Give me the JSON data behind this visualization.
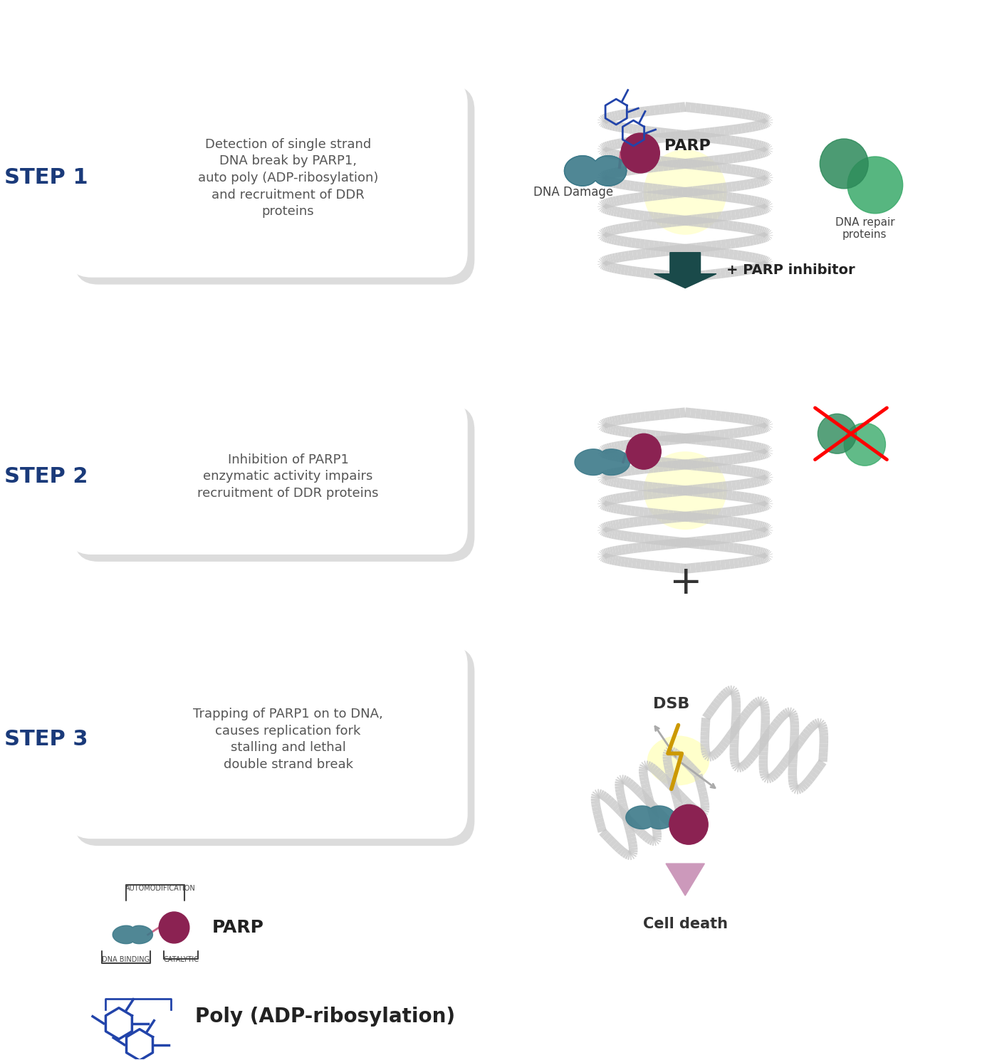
{
  "bg_color": "#ffffff",
  "step_color": "#1a3a7a",
  "bubble_bg": "#f5f5f5",
  "bubble_shadow": "#cccccc",
  "text_color": "#555555",
  "dna_color": "#c8c8c8",
  "parp_ball_color": "#8b2252",
  "dna_binding_color": "#3d7a8a",
  "repair_protein_color": "#2d8a5a",
  "arrow_color": "#1a4a4a",
  "plus_color": "#333333",
  "dsb_color": "#cc4422",
  "cell_death_arrow": "#cc99bb",
  "steps": [
    {
      "label": "STEP 1",
      "text": "Detection of single strand\nDNA break by PARP1,\nauto poly (ADP-ribosylation)\nand recruitment of DDR\nproteins"
    },
    {
      "label": "STEP 2",
      "text": "Inhibition of PARP1\nenzymatic activity impairs\nrecruitment of DDR proteins"
    },
    {
      "label": "STEP 3",
      "text": "Trapping of PARP1 on to DNA,\ncauses replication fork\nstalling and lethal\ndouble strand break"
    }
  ],
  "labels": {
    "parp": "PARP",
    "dna_damage": "DNA Damage",
    "dna_repair": "DNA repair\nproteins",
    "parp_inhibitor": "+ PARP inhibitor",
    "dsb": "DSB",
    "cell_death": "Cell death",
    "automod": "AUTOMODIFICATION",
    "dna_binding": "DNA BINDING",
    "catalytic": "CATALYTIC",
    "parp_legend": "PARP",
    "poly_legend": "Poly (ADP-ribosylation)"
  }
}
